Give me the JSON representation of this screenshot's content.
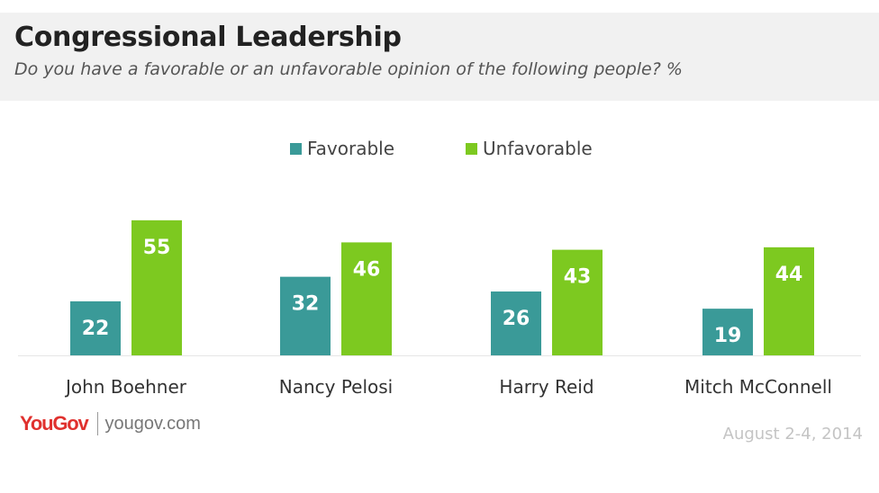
{
  "header": {
    "title": "Congressional Leadership",
    "subtitle": "Do you have a favorable or an unfavorable opinion of the following people? %"
  },
  "legend": {
    "favorable_label": "Favorable",
    "unfavorable_label": "Unfavorable"
  },
  "colors": {
    "favorable": "#3a9a98",
    "unfavorable": "#7dc920",
    "label_text": "#ffffff",
    "axis": "#e6e6e6"
  },
  "chart_data": {
    "type": "bar",
    "title": "Congressional Leadership",
    "subtitle": "Do you have a favorable or an unfavorable opinion of the following people? %",
    "categories": [
      "John Boehner",
      "Nancy Pelosi",
      "Harry Reid",
      "Mitch McConnell"
    ],
    "series": [
      {
        "name": "Favorable",
        "values": [
          22,
          32,
          26,
          19
        ]
      },
      {
        "name": "Unfavorable",
        "values": [
          55,
          46,
          43,
          44
        ]
      }
    ],
    "xlabel": "",
    "ylabel": "",
    "ylim": [
      0,
      60
    ],
    "grid": false,
    "legend_position": "top-center",
    "data_labels": true
  },
  "footer": {
    "logo": "YouGov",
    "url": "yougov.com",
    "date": "August 2-4, 2014"
  }
}
